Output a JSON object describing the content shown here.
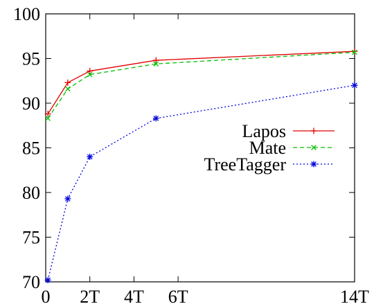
{
  "chart_data": {
    "type": "line",
    "title": "",
    "xlabel": "",
    "ylabel": "",
    "xlim": [
      0,
      14
    ],
    "ylim": [
      70,
      100
    ],
    "x_ticks": [
      {
        "value": 0,
        "label": "0"
      },
      {
        "value": 2,
        "label": "2T"
      },
      {
        "value": 4,
        "label": "4T"
      },
      {
        "value": 6,
        "label": "6T"
      },
      {
        "value": 14,
        "label": "14T"
      }
    ],
    "y_ticks": [
      {
        "value": 70,
        "label": "70"
      },
      {
        "value": 75,
        "label": "75"
      },
      {
        "value": 80,
        "label": "80"
      },
      {
        "value": 85,
        "label": "85"
      },
      {
        "value": 90,
        "label": "90"
      },
      {
        "value": 95,
        "label": "95"
      },
      {
        "value": 100,
        "label": "100"
      }
    ],
    "grid": false,
    "legend_position": "right",
    "series": [
      {
        "name": "Lapos",
        "color": "#e00000",
        "line_style": "solid",
        "marker": "plus",
        "x": [
          0.1,
          1.0,
          2.0,
          5.0,
          14.0
        ],
        "y": [
          88.8,
          92.3,
          93.6,
          94.8,
          95.8
        ]
      },
      {
        "name": "Mate",
        "color": "#00c000",
        "line_style": "dashed",
        "marker": "cross",
        "x": [
          0.1,
          1.0,
          2.0,
          5.0,
          14.0
        ],
        "y": [
          88.3,
          91.6,
          93.2,
          94.4,
          95.7
        ]
      },
      {
        "name": "TreeTagger",
        "color": "#0000e0",
        "line_style": "dotted",
        "marker": "star",
        "x": [
          0.1,
          1.0,
          2.0,
          5.0,
          14.0
        ],
        "y": [
          70.2,
          79.3,
          84.0,
          88.3,
          92.0
        ]
      }
    ]
  }
}
